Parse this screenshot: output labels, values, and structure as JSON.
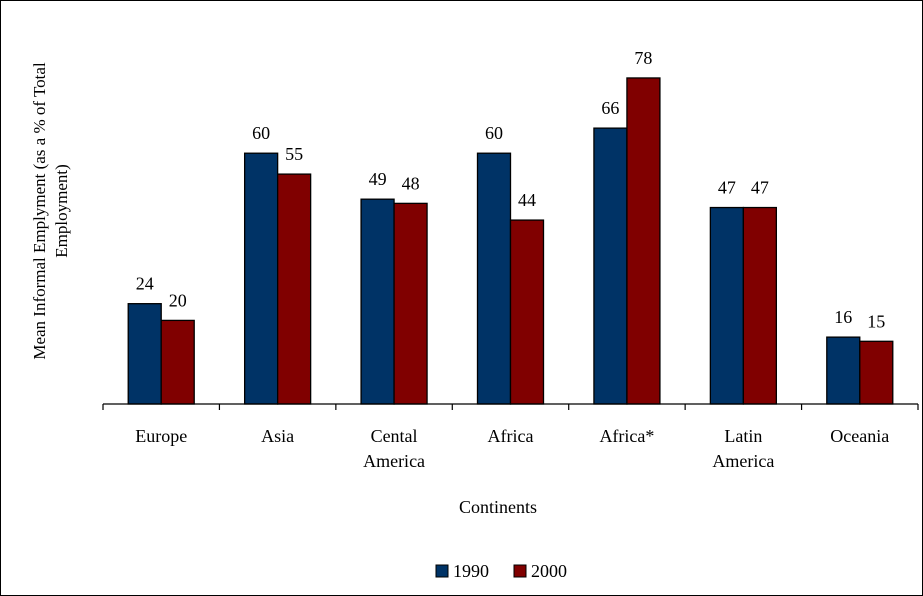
{
  "chart_data": {
    "type": "bar",
    "title": "",
    "xlabel": "Continents",
    "ylabel_lines": [
      "Mean Informal Emplyment (as a % of Total",
      "Employment)"
    ],
    "categories": [
      [
        "Europe"
      ],
      [
        "Asia"
      ],
      [
        "Cental",
        "America"
      ],
      [
        "Africa"
      ],
      [
        "Africa*"
      ],
      [
        "Latin",
        "America"
      ],
      [
        "Oceania"
      ]
    ],
    "series": [
      {
        "name": "1990",
        "color": "#003366",
        "values": [
          24,
          60,
          49,
          60,
          66,
          47,
          16
        ]
      },
      {
        "name": "2000",
        "color": "#800000",
        "values": [
          20,
          55,
          48,
          44,
          78,
          47,
          15
        ]
      }
    ],
    "ylim": [
      0,
      85
    ],
    "grid": false,
    "data_labels": true,
    "legend_position": "bottom"
  }
}
